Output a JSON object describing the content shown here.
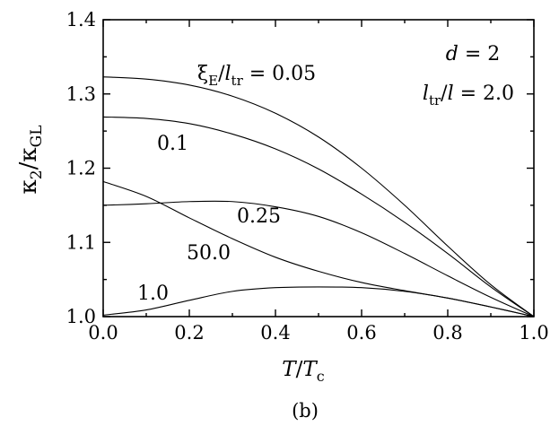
{
  "chart_data": {
    "type": "line",
    "xlabel": "T/T_c",
    "ylabel": "κ_2/κ_GL",
    "panel_label": "(b)",
    "xlim": [
      0.0,
      1.0
    ],
    "ylim": [
      1.0,
      1.4
    ],
    "x_ticks": [
      "0.0",
      "0.2",
      "0.4",
      "0.6",
      "0.8",
      "1.0"
    ],
    "y_ticks": [
      "1.0",
      "1.1",
      "1.2",
      "1.3",
      "1.4"
    ],
    "grid": false,
    "annotations": {
      "d": "d = 2",
      "ratio": "l_tr/l = 2.0",
      "xi_prefix": "ξ_E/l_tr = "
    },
    "series": [
      {
        "name": "0.05",
        "x": [
          0.0,
          0.1,
          0.2,
          0.3,
          0.4,
          0.5,
          0.6,
          0.7,
          0.8,
          0.9,
          1.0
        ],
        "y": [
          1.323,
          1.32,
          1.312,
          1.297,
          1.274,
          1.242,
          1.2,
          1.15,
          1.095,
          1.043,
          1.0
        ]
      },
      {
        "name": "0.1",
        "x": [
          0.0,
          0.1,
          0.2,
          0.3,
          0.4,
          0.5,
          0.6,
          0.7,
          0.8,
          0.9,
          1.0
        ],
        "y": [
          1.269,
          1.267,
          1.26,
          1.246,
          1.226,
          1.199,
          1.165,
          1.127,
          1.085,
          1.04,
          1.0
        ]
      },
      {
        "name": "0.25",
        "x": [
          0.0,
          0.1,
          0.2,
          0.3,
          0.4,
          0.5,
          0.6,
          0.7,
          0.8,
          0.9,
          1.0
        ],
        "y": [
          1.15,
          1.152,
          1.155,
          1.155,
          1.148,
          1.135,
          1.113,
          1.085,
          1.055,
          1.026,
          1.0
        ]
      },
      {
        "name": "50.0",
        "x": [
          0.0,
          0.1,
          0.2,
          0.3,
          0.4,
          0.5,
          0.6,
          0.7,
          0.8,
          0.9,
          1.0
        ],
        "y": [
          1.182,
          1.162,
          1.133,
          1.105,
          1.08,
          1.061,
          1.046,
          1.035,
          1.025,
          1.013,
          1.0
        ]
      },
      {
        "name": "1.0",
        "x": [
          0.0,
          0.1,
          0.2,
          0.3,
          0.4,
          0.5,
          0.6,
          0.7,
          0.8,
          0.9,
          1.0
        ],
        "y": [
          1.002,
          1.009,
          1.022,
          1.034,
          1.039,
          1.04,
          1.039,
          1.034,
          1.025,
          1.013,
          1.0
        ]
      }
    ]
  }
}
